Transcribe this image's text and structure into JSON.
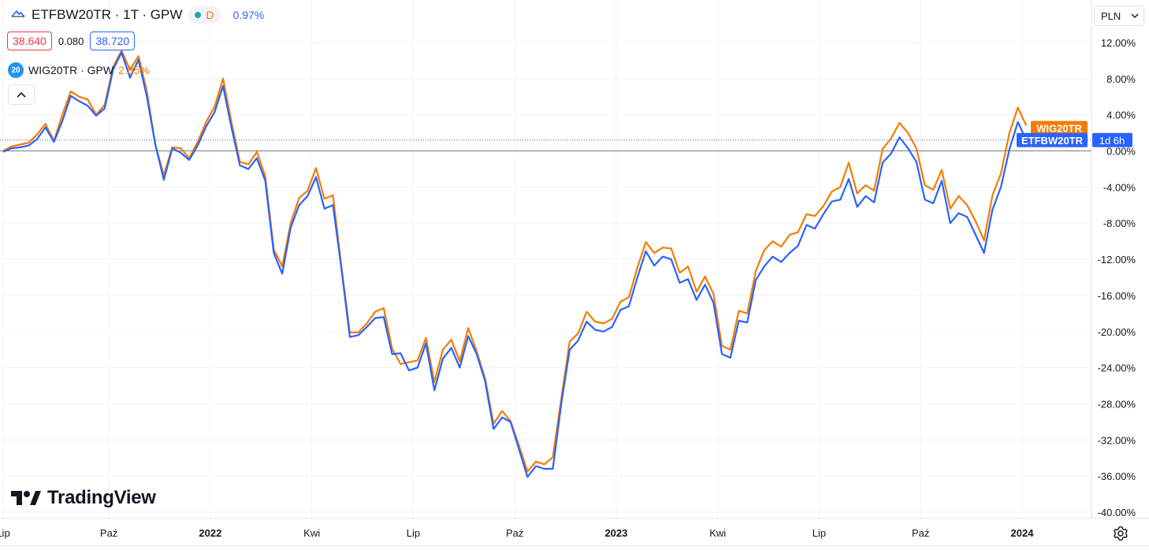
{
  "header": {
    "symbol": "ETFBW20TR · 1T · GPW",
    "interval_badge": "D",
    "change": "0.97%",
    "bid": "38.640",
    "spread": "0.080",
    "ask": "38.720"
  },
  "compare": {
    "badge": "20",
    "symbol": "WIG20TR · GPW",
    "change": "2.85%"
  },
  "currency": {
    "label": "PLN"
  },
  "branding": {
    "logo_text": "TradingView"
  },
  "icons": {
    "collapse": "chevron-up-icon",
    "currency_arrow": "chevron-down-icon",
    "settings": "gear-icon",
    "symbol": "etf-logo-icon"
  },
  "colors": {
    "etf": "#2962ff",
    "wig": "#f57c00",
    "bid": "#f23645",
    "grid": "#f0f3fa"
  },
  "chart_data": {
    "type": "line",
    "y_axis": {
      "unit": "%",
      "ylim": [
        -41,
        14
      ],
      "ticks": [
        12,
        8,
        4,
        0,
        -4,
        -8,
        -12,
        -16,
        -20,
        -24,
        -28,
        -32,
        -36,
        -40
      ],
      "tick_labels": [
        "12.00%",
        "8.00%",
        "4.00%",
        "0.00%",
        "-4.00%",
        "-8.00%",
        "-12.00%",
        "-16.00%",
        "-20.00%",
        "-24.00%",
        "-28.00%",
        "-32.00%",
        "-36.00%",
        "-40.00%"
      ]
    },
    "x_axis": {
      "labels": [
        {
          "label": "Lip",
          "bold": false
        },
        {
          "label": "Paź",
          "bold": false
        },
        {
          "label": "2022",
          "bold": true
        },
        {
          "label": "Kwi",
          "bold": false
        },
        {
          "label": "Lip",
          "bold": false
        },
        {
          "label": "Paź",
          "bold": false
        },
        {
          "label": "2023",
          "bold": true
        },
        {
          "label": "Kwi",
          "bold": false
        },
        {
          "label": "Lip",
          "bold": false
        },
        {
          "label": "Paź",
          "bold": false
        },
        {
          "label": "2024",
          "bold": true
        }
      ],
      "label_index": [
        0,
        12.5,
        24.5,
        36.5,
        48.5,
        60.5,
        72.5,
        84.5,
        96.5,
        108.5,
        120.5
      ]
    },
    "series": [
      {
        "name": "ETFBW20TR",
        "tag": "ETFBW20TR",
        "countdown": "1d 6h",
        "values": [
          -0.1,
          0.3,
          0.4,
          0.6,
          1.3,
          2.6,
          1.0,
          3.3,
          6.1,
          5.5,
          5.0,
          3.9,
          4.7,
          9.0,
          10.9,
          8.1,
          10.1,
          6.0,
          0.7,
          -3.2,
          0.3,
          -0.2,
          -1.0,
          0.6,
          2.7,
          4.3,
          7.2,
          2.6,
          -1.6,
          -2.0,
          -0.8,
          -3.3,
          -11.3,
          -13.6,
          -8.5,
          -6.0,
          -5.0,
          -2.9,
          -6.4,
          -6.0,
          -13.0,
          -20.6,
          -20.4,
          -19.5,
          -18.5,
          -18.4,
          -22.5,
          -22.4,
          -24.3,
          -24.0,
          -21.3,
          -26.5,
          -23.0,
          -21.8,
          -24.0,
          -20.5,
          -22.5,
          -25.5,
          -30.8,
          -29.5,
          -30.0,
          -33.0,
          -36.1,
          -34.9,
          -35.2,
          -35.2,
          -28.0,
          -22.0,
          -21.0,
          -18.9,
          -19.8,
          -20.0,
          -19.5,
          -17.6,
          -17.2,
          -14.0,
          -11.1,
          -12.7,
          -11.7,
          -12.0,
          -14.6,
          -14.2,
          -16.5,
          -14.8,
          -16.8,
          -22.5,
          -22.9,
          -18.8,
          -19.0,
          -14.3,
          -12.8,
          -11.7,
          -12.3,
          -11.3,
          -10.5,
          -8.2,
          -8.6,
          -7.0,
          -5.6,
          -5.4,
          -3.1,
          -6.2,
          -5.0,
          -5.7,
          -1.3,
          -0.3,
          1.5,
          0.3,
          -1.2,
          -5.4,
          -5.8,
          -3.3,
          -8.0,
          -6.9,
          -7.3,
          -9.3,
          -11.3,
          -6.5,
          -4.0,
          0.2,
          3.2,
          1.2
        ]
      },
      {
        "name": "WIG20TR",
        "tag": "WIG20TR",
        "values": [
          0.0,
          0.5,
          0.7,
          0.9,
          1.8,
          3.0,
          1.1,
          4.0,
          6.6,
          6.0,
          5.7,
          4.0,
          5.1,
          9.3,
          11.1,
          9.0,
          10.5,
          6.6,
          0.7,
          -2.7,
          0.4,
          0.3,
          -0.8,
          1.0,
          3.2,
          4.9,
          8.0,
          3.2,
          -1.2,
          -1.5,
          -0.1,
          -2.8,
          -10.9,
          -12.8,
          -8.0,
          -5.2,
          -4.4,
          -1.9,
          -5.3,
          -4.9,
          -12.8,
          -20.1,
          -20.1,
          -19.1,
          -17.8,
          -17.4,
          -21.9,
          -23.6,
          -23.4,
          -23.2,
          -20.7,
          -25.6,
          -22.0,
          -20.9,
          -23.3,
          -19.6,
          -22.2,
          -25.2,
          -30.2,
          -28.8,
          -29.9,
          -32.6,
          -35.5,
          -34.4,
          -34.7,
          -33.9,
          -27.4,
          -21.1,
          -20.2,
          -17.8,
          -18.9,
          -19.1,
          -18.6,
          -16.7,
          -16.2,
          -12.9,
          -10.1,
          -11.3,
          -10.7,
          -10.8,
          -13.5,
          -12.8,
          -15.6,
          -13.9,
          -15.8,
          -21.6,
          -22.0,
          -17.7,
          -18.0,
          -13.3,
          -11.0,
          -10.0,
          -10.6,
          -9.3,
          -9.0,
          -7.0,
          -7.2,
          -6.1,
          -4.5,
          -4.0,
          -1.3,
          -4.7,
          -3.8,
          -4.4,
          0.2,
          1.4,
          3.1,
          2.0,
          0.3,
          -3.8,
          -4.3,
          -2.1,
          -6.4,
          -5.0,
          -6.0,
          -7.8,
          -9.9,
          -4.9,
          -2.5,
          2.0,
          4.8,
          2.8
        ]
      }
    ],
    "title": "",
    "xlabel": "",
    "ylabel": "",
    "grid": true,
    "legend": "top-left"
  }
}
